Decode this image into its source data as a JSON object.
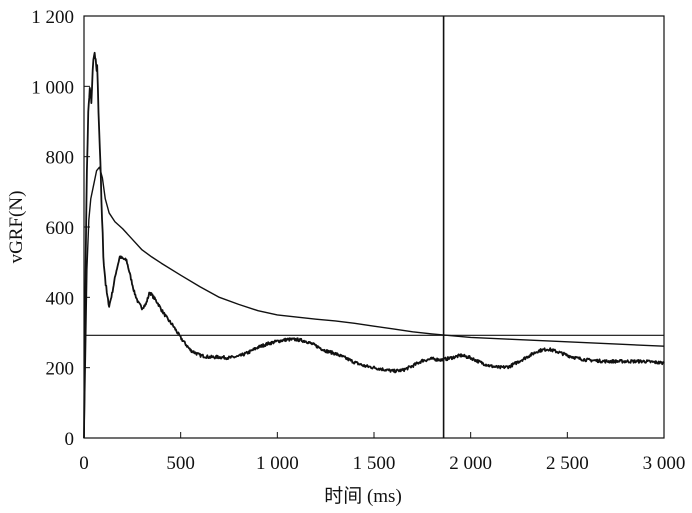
{
  "chart_data": {
    "type": "line",
    "title": "",
    "xlabel": "时间 (ms)",
    "ylabel": "vGRF(N)",
    "xlim": [
      0,
      3000
    ],
    "ylim": [
      0,
      1200
    ],
    "x_ticks": [
      0,
      500,
      1000,
      1500,
      2000,
      2500,
      3000
    ],
    "x_tick_labels": [
      "0",
      "500",
      "1 000",
      "1 500",
      "2 000",
      "2 500",
      "3 000"
    ],
    "y_ticks": [
      0,
      200,
      400,
      600,
      800,
      1000,
      1200
    ],
    "y_tick_labels": [
      "0",
      "200",
      "400",
      "600",
      "800",
      "1 000",
      "1 200"
    ],
    "grid": false,
    "legend": "none",
    "reference_lines": {
      "horizontal_y": 292,
      "vertical_x": 1860
    },
    "series": [
      {
        "style": "smooth",
        "x": [
          0,
          8,
          15,
          25,
          35,
          50,
          65,
          80,
          95,
          110,
          130,
          160,
          200,
          250,
          300,
          350,
          400,
          500,
          600,
          700,
          800,
          900,
          1000,
          1100,
          1200,
          1300,
          1400,
          1500,
          1600,
          1700,
          1800,
          1900,
          2000,
          2200,
          2400,
          2600,
          2800,
          3000
        ],
        "y": [
          0,
          250,
          480,
          620,
          680,
          720,
          760,
          770,
          740,
          680,
          640,
          615,
          595,
          565,
          535,
          515,
          497,
          463,
          430,
          400,
          380,
          362,
          350,
          344,
          338,
          333,
          326,
          318,
          310,
          302,
          296,
          291,
          286,
          281,
          276,
          271,
          266,
          261
        ]
      },
      {
        "style": "noisy",
        "x": [
          0,
          8,
          15,
          22,
          30,
          38,
          45,
          52,
          58,
          63,
          68,
          75,
          82,
          90,
          100,
          115,
          130,
          145,
          165,
          185,
          200,
          220,
          240,
          260,
          280,
          300,
          320,
          340,
          360,
          380,
          400,
          430,
          460,
          500,
          550,
          600,
          650,
          700,
          750,
          800,
          850,
          900,
          950,
          1000,
          1050,
          1100,
          1150,
          1200,
          1250,
          1300,
          1350,
          1400,
          1450,
          1500,
          1550,
          1600,
          1650,
          1700,
          1750,
          1800,
          1850,
          1900,
          1950,
          2000,
          2050,
          2100,
          2150,
          2200,
          2250,
          2300,
          2350,
          2400,
          2450,
          2500,
          2550,
          2600,
          2700,
          2800,
          2900,
          3000
        ],
        "y": [
          0,
          480,
          760,
          920,
          990,
          960,
          1040,
          1100,
          1080,
          1050,
          1060,
          920,
          820,
          680,
          520,
          420,
          375,
          410,
          470,
          515,
          510,
          505,
          460,
          415,
          385,
          370,
          380,
          415,
          400,
          385,
          365,
          340,
          320,
          285,
          250,
          235,
          230,
          230,
          228,
          232,
          243,
          258,
          268,
          275,
          280,
          280,
          275,
          262,
          248,
          240,
          228,
          215,
          205,
          200,
          195,
          190,
          193,
          205,
          220,
          225,
          222,
          228,
          235,
          228,
          215,
          205,
          200,
          203,
          218,
          233,
          248,
          253,
          245,
          235,
          227,
          222,
          218,
          218,
          218,
          213
        ]
      }
    ]
  }
}
